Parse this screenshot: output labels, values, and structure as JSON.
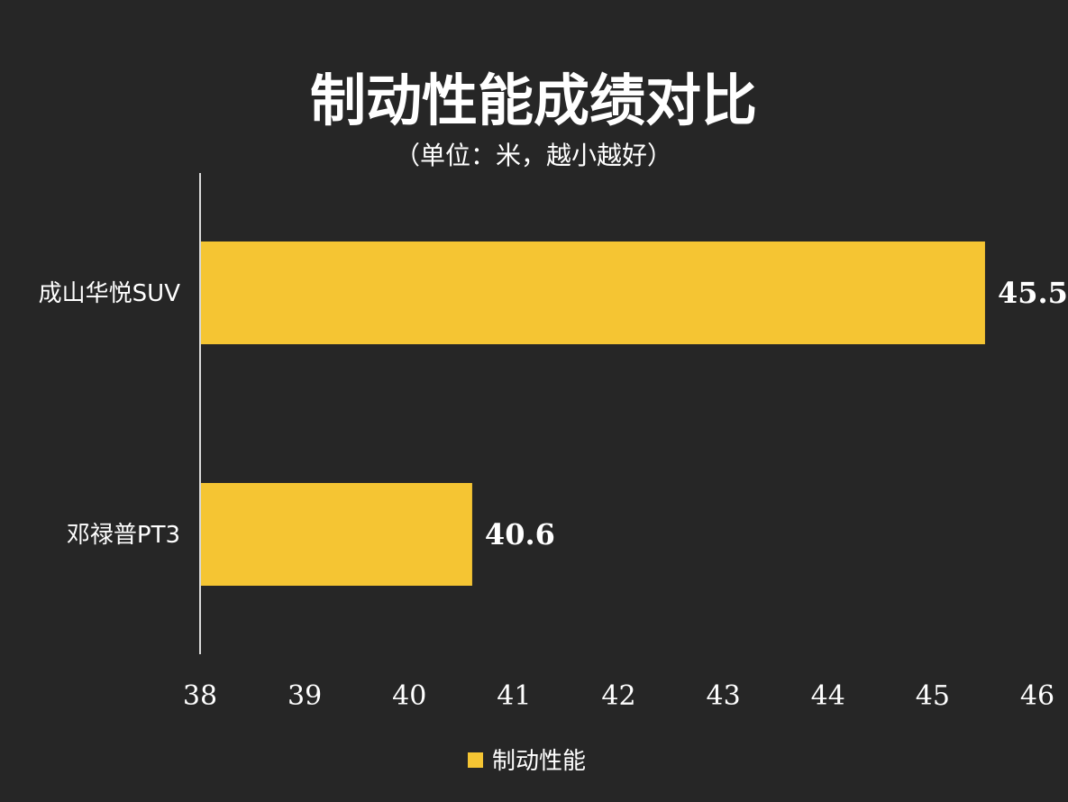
{
  "chart_data": {
    "type": "bar",
    "orientation": "horizontal",
    "title": "制动性能成绩对比",
    "subtitle": "（单位：米，越小越好）",
    "categories": [
      "成山华悦SUV",
      "邓禄普PT3"
    ],
    "series": [
      {
        "name": "制动性能",
        "values": [
          45.5,
          40.6
        ],
        "color": "#F5C533"
      }
    ],
    "data_labels": [
      "45.5",
      "40.6"
    ],
    "xlim": [
      38,
      46
    ],
    "x_ticks": [
      "38",
      "39",
      "40",
      "41",
      "42",
      "43",
      "44",
      "45",
      "46"
    ],
    "grid": false,
    "legend": "bottom-center",
    "background_color": "#262626",
    "text_color": "#FFFFFF"
  }
}
